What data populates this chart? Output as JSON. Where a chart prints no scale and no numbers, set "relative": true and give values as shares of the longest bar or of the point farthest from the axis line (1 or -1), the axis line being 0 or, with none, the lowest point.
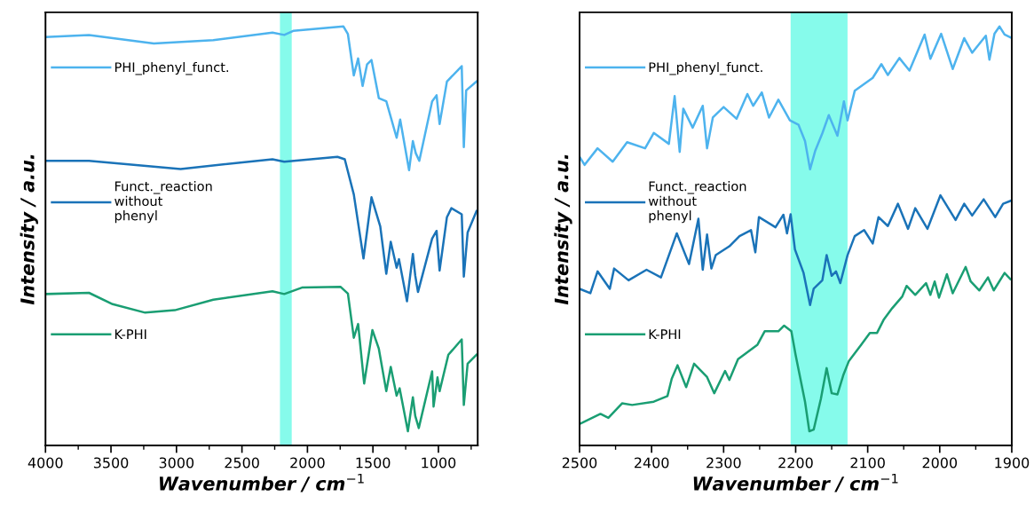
{
  "chart_data": [
    {
      "type": "line",
      "relative": true,
      "xlabel": "Wavenumber / cm$^{−1}$",
      "ylabel": "Intensity / a.u.",
      "xlim": [
        4000,
        700
      ],
      "xticks": [
        4000,
        3500,
        3000,
        2500,
        2000,
        1500,
        1000
      ],
      "tick_labels": "x",
      "legend": "top left",
      "grid": false,
      "bands": [
        {
          "axis": "x",
          "from": 2210,
          "to": 2120,
          "color": "#86fbeb"
        }
      ],
      "series": [
        {
          "name": "PHI_phenyl_funct.",
          "color": "#4db3ee",
          "x": [
            4000,
            3668,
            3173,
            2719,
            2267,
            2177,
            2109,
            1725,
            1691,
            1646,
            1613,
            1579,
            1545,
            1511,
            1455,
            1398,
            1319,
            1292,
            1224,
            1195,
            1173,
            1146,
            1048,
            1014,
            991,
            935,
            822,
            806,
            788,
            709
          ],
          "values": [
            0.974,
            0.979,
            0.958,
            0.966,
            0.985,
            0.979,
            0.989,
            1.0,
            0.981,
            0.879,
            0.921,
            0.853,
            0.906,
            0.917,
            0.823,
            0.815,
            0.725,
            0.77,
            0.645,
            0.717,
            0.687,
            0.668,
            0.815,
            0.83,
            0.759,
            0.864,
            0.902,
            0.702,
            0.842,
            0.864
          ]
        },
        {
          "name": "Funct._reaction without phenyl",
          "color": "#1a73b8",
          "x": [
            4000,
            3668,
            2968,
            2267,
            2177,
            1771,
            1715,
            1646,
            1572,
            1511,
            1444,
            1398,
            1364,
            1319,
            1301,
            1240,
            1195,
            1177,
            1156,
            1048,
            1014,
            991,
            935,
            901,
            822,
            806,
            777,
            709
          ],
          "values": [
            0.668,
            0.668,
            0.648,
            0.672,
            0.666,
            0.678,
            0.672,
            0.585,
            0.427,
            0.578,
            0.506,
            0.389,
            0.468,
            0.404,
            0.425,
            0.321,
            0.438,
            0.385,
            0.344,
            0.476,
            0.495,
            0.397,
            0.529,
            0.551,
            0.536,
            0.382,
            0.491,
            0.544
          ]
        },
        {
          "name": "K-PHI",
          "color": "#1a9e73",
          "x": [
            4000,
            3668,
            3487,
            3239,
            3013,
            2719,
            2267,
            2177,
            2042,
            1748,
            1691,
            1646,
            1613,
            1567,
            1504,
            1455,
            1398,
            1364,
            1319,
            1296,
            1233,
            1195,
            1177,
            1150,
            1048,
            1037,
            1007,
            991,
            924,
            822,
            806,
            777,
            709
          ],
          "values": [
            0.339,
            0.342,
            0.314,
            0.293,
            0.299,
            0.325,
            0.346,
            0.339,
            0.355,
            0.357,
            0.34,
            0.231,
            0.265,
            0.118,
            0.25,
            0.204,
            0.099,
            0.159,
            0.088,
            0.106,
            0.0,
            0.084,
            0.038,
            0.008,
            0.148,
            0.061,
            0.133,
            0.099,
            0.189,
            0.227,
            0.065,
            0.167,
            0.189
          ]
        }
      ]
    },
    {
      "type": "line",
      "relative": true,
      "xlabel": "Wavenumber / cm$^{−1}$",
      "ylabel": "Intensity / a.u.",
      "xlim": [
        2500,
        1900
      ],
      "xticks": [
        2500,
        2400,
        2300,
        2200,
        2100,
        2000,
        1900
      ],
      "tick_labels": "x",
      "legend": "top left",
      "grid": false,
      "bands": [
        {
          "axis": "x",
          "from": 2207,
          "to": 2128,
          "color": "#86fbeb"
        }
      ],
      "series": [
        {
          "name": "PHI_phenyl_funct.",
          "color": "#4db3ee",
          "x": [
            2500,
            2493,
            2475,
            2454,
            2434,
            2409,
            2397,
            2376,
            2368,
            2361,
            2356,
            2343,
            2329,
            2323,
            2315,
            2300,
            2282,
            2267,
            2259,
            2247,
            2237,
            2224,
            2208,
            2196,
            2187,
            2180,
            2173,
            2163,
            2154,
            2142,
            2133,
            2128,
            2118,
            2093,
            2081,
            2072,
            2056,
            2042,
            2021,
            2013,
            1998,
            1982,
            1966,
            1955,
            1936,
            1931,
            1924,
            1917,
            1910,
            1902
          ],
          "values": [
            0.678,
            0.658,
            0.699,
            0.666,
            0.714,
            0.699,
            0.737,
            0.71,
            0.828,
            0.69,
            0.797,
            0.75,
            0.804,
            0.699,
            0.775,
            0.801,
            0.772,
            0.833,
            0.804,
            0.837,
            0.775,
            0.819,
            0.768,
            0.757,
            0.717,
            0.647,
            0.692,
            0.736,
            0.781,
            0.73,
            0.815,
            0.768,
            0.841,
            0.873,
            0.907,
            0.88,
            0.922,
            0.891,
            0.98,
            0.92,
            0.982,
            0.895,
            0.971,
            0.935,
            0.977,
            0.918,
            0.982,
            1.0,
            0.98,
            0.973
          ]
        },
        {
          "name": "Funct._reaction without phenyl",
          "color": "#1a73b8",
          "x": [
            2500,
            2485,
            2475,
            2458,
            2452,
            2432,
            2407,
            2387,
            2365,
            2348,
            2335,
            2329,
            2323,
            2317,
            2311,
            2292,
            2278,
            2262,
            2256,
            2251,
            2228,
            2217,
            2212,
            2207,
            2201,
            2189,
            2180,
            2175,
            2163,
            2157,
            2150,
            2144,
            2138,
            2128,
            2118,
            2105,
            2093,
            2085,
            2072,
            2058,
            2044,
            2034,
            2017,
            1999,
            1978,
            1966,
            1955,
            1939,
            1923,
            1912,
            1902
          ],
          "values": [
            0.352,
            0.341,
            0.395,
            0.352,
            0.402,
            0.373,
            0.399,
            0.38,
            0.489,
            0.413,
            0.525,
            0.399,
            0.486,
            0.402,
            0.435,
            0.457,
            0.482,
            0.497,
            0.442,
            0.529,
            0.504,
            0.535,
            0.489,
            0.536,
            0.449,
            0.391,
            0.312,
            0.352,
            0.373,
            0.435,
            0.384,
            0.395,
            0.366,
            0.435,
            0.482,
            0.497,
            0.464,
            0.529,
            0.507,
            0.562,
            0.5,
            0.551,
            0.5,
            0.583,
            0.522,
            0.562,
            0.533,
            0.573,
            0.529,
            0.562,
            0.569
          ]
        },
        {
          "name": "K-PHI",
          "color": "#1a9e73",
          "x": [
            2500,
            2471,
            2460,
            2441,
            2427,
            2397,
            2378,
            2372,
            2364,
            2352,
            2341,
            2323,
            2313,
            2298,
            2292,
            2280,
            2253,
            2243,
            2224,
            2216,
            2206,
            2200,
            2187,
            2181,
            2175,
            2165,
            2157,
            2150,
            2142,
            2134,
            2126,
            2109,
            2097,
            2087,
            2078,
            2066,
            2052,
            2046,
            2034,
            2019,
            2013,
            2007,
            2001,
            1990,
            1982,
            1964,
            1957,
            1945,
            1933,
            1925,
            1910,
            1902
          ],
          "values": [
            0.018,
            0.043,
            0.033,
            0.069,
            0.065,
            0.073,
            0.087,
            0.13,
            0.163,
            0.109,
            0.167,
            0.134,
            0.094,
            0.149,
            0.127,
            0.178,
            0.214,
            0.247,
            0.247,
            0.261,
            0.247,
            0.188,
            0.073,
            0.0,
            0.004,
            0.08,
            0.156,
            0.094,
            0.091,
            0.138,
            0.174,
            0.214,
            0.243,
            0.243,
            0.275,
            0.304,
            0.333,
            0.359,
            0.337,
            0.366,
            0.337,
            0.37,
            0.33,
            0.388,
            0.341,
            0.406,
            0.37,
            0.348,
            0.38,
            0.348,
            0.391,
            0.376
          ]
        }
      ]
    }
  ]
}
